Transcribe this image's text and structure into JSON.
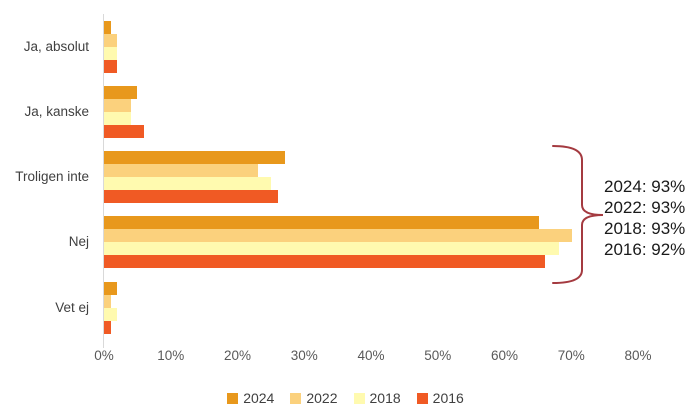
{
  "chart_data": {
    "type": "bar",
    "orientation": "horizontal",
    "title": "",
    "categories": [
      "Ja, absolut",
      "Ja, kanske",
      "Troligen inte",
      "Nej",
      "Vet ej"
    ],
    "series": [
      {
        "name": "2024",
        "color": "#E8981C",
        "values": [
          1,
          5,
          27,
          65,
          2
        ]
      },
      {
        "name": "2022",
        "color": "#FBD17D",
        "values": [
          2,
          4,
          23,
          70,
          1
        ]
      },
      {
        "name": "2018",
        "color": "#FFFAAF",
        "values": [
          2,
          4,
          25,
          68,
          2
        ]
      },
      {
        "name": "2016",
        "color": "#F05A24",
        "values": [
          2,
          6,
          26,
          66,
          1
        ]
      }
    ],
    "x_axis": {
      "ticks": [
        "0%",
        "10%",
        "20%",
        "30%",
        "40%",
        "50%",
        "60%",
        "70%",
        "80%"
      ],
      "min": 0,
      "max": 80,
      "unit": "%"
    },
    "legend": [
      "2024",
      "2022",
      "2018",
      "2016"
    ],
    "legend_position": "bottom",
    "grid": false,
    "axis_line_color": "#D9D9D9"
  },
  "annotation": {
    "lines": [
      "2024: 93%",
      "2022: 93%",
      "2018: 93%",
      "2016: 92%"
    ],
    "brace_color": "#A43A40"
  }
}
